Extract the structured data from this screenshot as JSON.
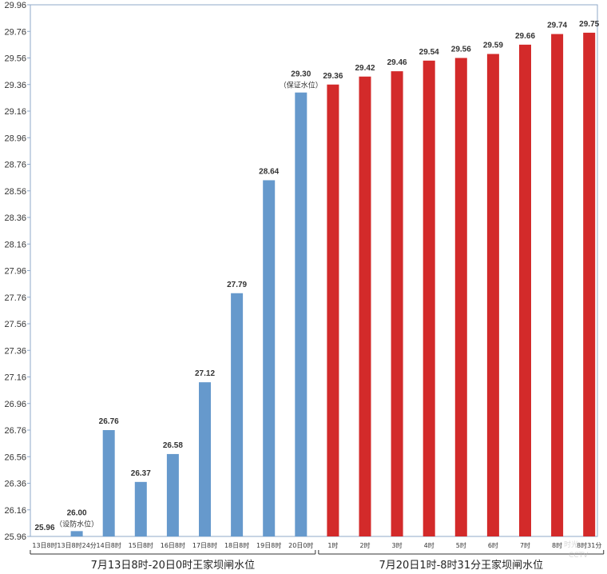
{
  "chart_data": {
    "type": "bar",
    "ylim": [
      25.96,
      29.96
    ],
    "yticks": [
      25.96,
      26.16,
      26.36,
      26.56,
      26.76,
      26.96,
      27.16,
      27.36,
      27.56,
      27.76,
      27.96,
      28.16,
      28.36,
      28.56,
      28.76,
      28.96,
      29.16,
      29.36,
      29.56,
      29.76,
      29.96
    ],
    "grid": false,
    "categories": [
      "13日8时",
      "13日8时24分",
      "14日8时",
      "15日8时",
      "16日8时",
      "17日8时",
      "18日8时",
      "19日8时",
      "20日0时",
      "1时",
      "2时",
      "3时",
      "4时",
      "5时",
      "6时",
      "7时",
      "8时",
      "8时31分"
    ],
    "values": [
      25.96,
      26.0,
      26.76,
      26.37,
      26.58,
      27.12,
      27.79,
      28.64,
      29.3,
      29.36,
      29.42,
      29.46,
      29.54,
      29.56,
      29.59,
      29.66,
      29.74,
      29.75
    ],
    "value_labels": [
      "25.96",
      "26.00",
      "26.76",
      "26.37",
      "26.58",
      "27.12",
      "27.79",
      "28.64",
      "29.30",
      "29.36",
      "29.42",
      "29.46",
      "29.54",
      "29.56",
      "29.59",
      "29.66",
      "29.74",
      "29.75"
    ],
    "annotations": [
      {
        "index": 1,
        "text": "（设防水位）"
      },
      {
        "index": 8,
        "text": "（保证水位）"
      }
    ],
    "groups": [
      {
        "label": "7月13日8时-20日0时王家坝闸水位",
        "start": 0,
        "end": 8,
        "color": "#6699cc"
      },
      {
        "label": "7月20日1时-8时31分王家坝闸水位",
        "start": 9,
        "end": 17,
        "color": "#d32a2a"
      }
    ]
  },
  "watermark": {
    "line1": "时光",
    "line2": "CCTV"
  }
}
